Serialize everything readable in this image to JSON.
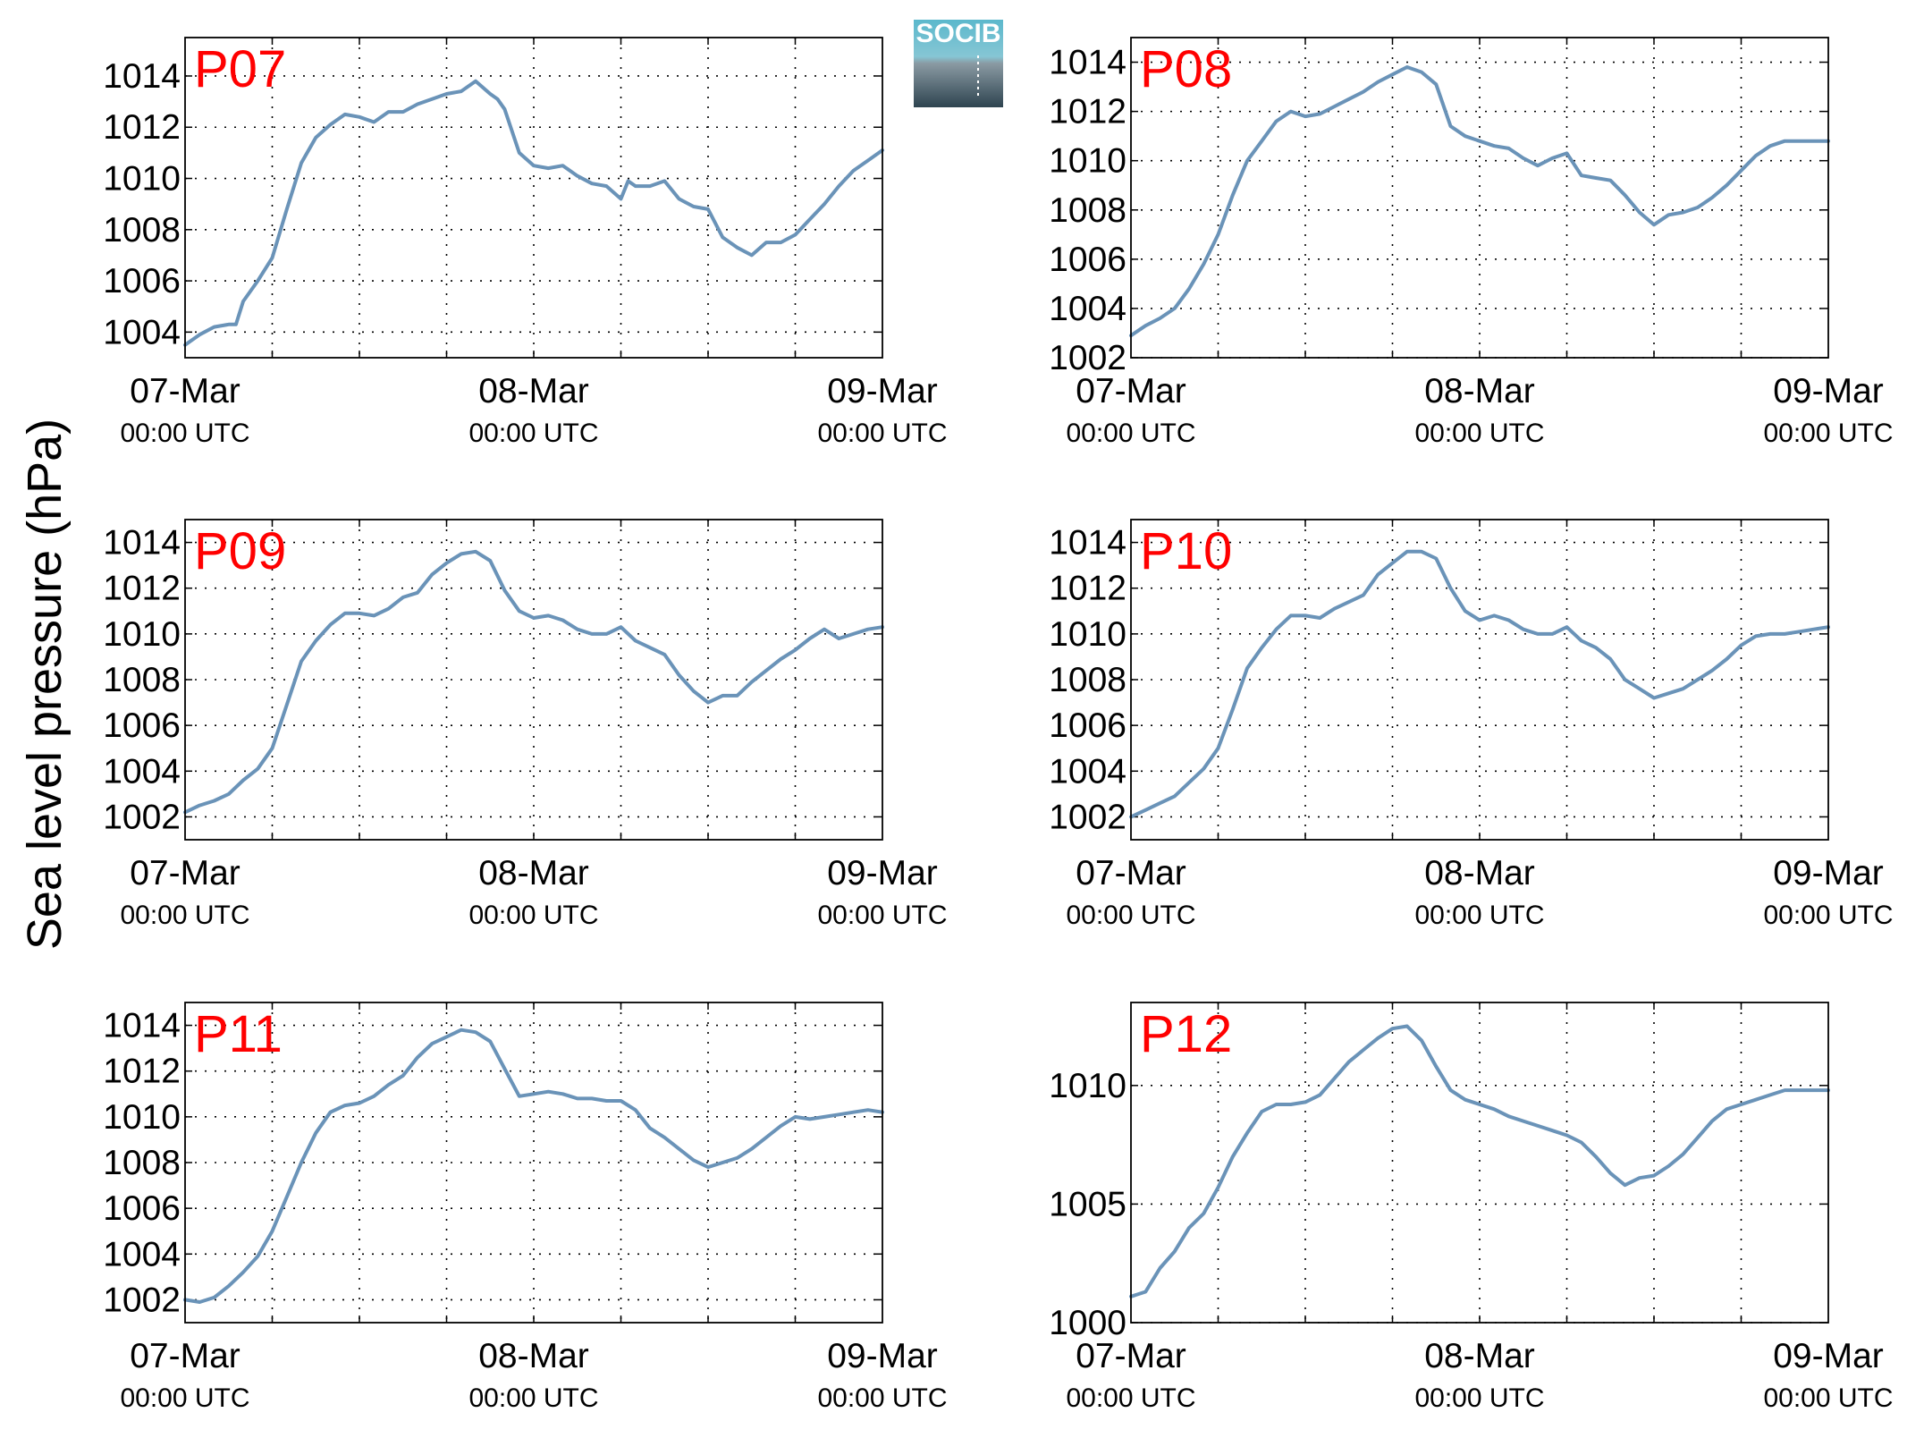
{
  "figure": {
    "ylabel": "Sea level pressure (hPa)",
    "logo_text": "SOCIB",
    "colors": {
      "line": "#6a93b8",
      "panel_label": "#ff0000",
      "logo_top": "#5bb8cc",
      "logo_bottom": "#2e4450"
    }
  },
  "chart_data": [
    {
      "type": "line",
      "name": "P07",
      "xticks": [
        "07-Mar",
        "08-Mar",
        "09-Mar"
      ],
      "xtick_sublabel": "00:00 UTC",
      "xlim_hours": [
        0,
        48
      ],
      "ylim": [
        1003,
        1015.5
      ],
      "yticks": [
        1004,
        1006,
        1008,
        1010,
        1012,
        1014
      ],
      "grid": true,
      "x_hours": [
        0,
        1,
        2,
        3,
        3.5,
        4,
        5,
        6,
        7,
        8,
        9,
        10,
        11,
        12,
        13,
        14,
        15,
        16,
        17,
        18,
        19,
        20,
        21,
        21.5,
        22,
        23,
        24,
        25,
        26,
        27,
        28,
        29,
        30,
        30.5,
        31,
        32,
        33,
        34,
        35,
        36,
        37,
        38,
        39,
        40,
        41,
        42,
        43,
        44,
        45,
        46,
        47,
        48
      ],
      "values": [
        1003.5,
        1003.9,
        1004.2,
        1004.3,
        1004.3,
        1005.2,
        1006.0,
        1006.9,
        1008.8,
        1010.6,
        1011.6,
        1012.1,
        1012.5,
        1012.4,
        1012.2,
        1012.6,
        1012.6,
        1012.9,
        1013.1,
        1013.3,
        1013.4,
        1013.8,
        1013.3,
        1013.1,
        1012.7,
        1011.0,
        1010.5,
        1010.4,
        1010.5,
        1010.1,
        1009.8,
        1009.7,
        1009.2,
        1009.9,
        1009.7,
        1009.7,
        1009.9,
        1009.2,
        1008.9,
        1008.8,
        1007.7,
        1007.3,
        1007.0,
        1007.5,
        1007.5,
        1007.8,
        1008.4,
        1009.0,
        1009.7,
        1010.3,
        1010.7,
        1011.1
      ]
    },
    {
      "type": "line",
      "name": "P08",
      "xticks": [
        "07-Mar",
        "08-Mar",
        "09-Mar"
      ],
      "xtick_sublabel": "00:00 UTC",
      "xlim_hours": [
        0,
        48
      ],
      "ylim": [
        1002,
        1015
      ],
      "yticks": [
        1002,
        1004,
        1006,
        1008,
        1010,
        1012,
        1014
      ],
      "grid": true,
      "x_hours": [
        0,
        1,
        2,
        3,
        4,
        5,
        6,
        7,
        8,
        9,
        10,
        11,
        12,
        13,
        14,
        15,
        16,
        17,
        18,
        19,
        20,
        21,
        22,
        23,
        24,
        25,
        26,
        27,
        28,
        29,
        30,
        31,
        32,
        33,
        34,
        35,
        36,
        37,
        38,
        39,
        40,
        41,
        42,
        43,
        44,
        45,
        46,
        47,
        48
      ],
      "values": [
        1002.9,
        1003.3,
        1003.6,
        1004.0,
        1004.8,
        1005.8,
        1007.0,
        1008.6,
        1010.0,
        1010.8,
        1011.6,
        1012.0,
        1011.8,
        1011.9,
        1012.2,
        1012.5,
        1012.8,
        1013.2,
        1013.5,
        1013.8,
        1013.6,
        1013.1,
        1011.4,
        1011.0,
        1010.8,
        1010.6,
        1010.5,
        1010.1,
        1009.8,
        1010.1,
        1010.3,
        1009.4,
        1009.3,
        1009.2,
        1008.6,
        1007.9,
        1007.4,
        1007.8,
        1007.9,
        1008.1,
        1008.5,
        1009.0,
        1009.6,
        1010.2,
        1010.6,
        1010.8,
        1010.8,
        1010.8,
        1010.8
      ]
    },
    {
      "type": "line",
      "name": "P09",
      "xticks": [
        "07-Mar",
        "08-Mar",
        "09-Mar"
      ],
      "xtick_sublabel": "00:00 UTC",
      "xlim_hours": [
        0,
        48
      ],
      "ylim": [
        1001,
        1015
      ],
      "yticks": [
        1002,
        1004,
        1006,
        1008,
        1010,
        1012,
        1014
      ],
      "grid": true,
      "x_hours": [
        0,
        1,
        2,
        3,
        4,
        5,
        6,
        7,
        8,
        9,
        10,
        11,
        12,
        13,
        14,
        15,
        16,
        17,
        18,
        19,
        20,
        21,
        22,
        23,
        24,
        25,
        26,
        27,
        28,
        29,
        30,
        31,
        32,
        33,
        34,
        35,
        36,
        37,
        38,
        39,
        40,
        41,
        42,
        43,
        44,
        45,
        46,
        47,
        48
      ],
      "values": [
        1002.2,
        1002.5,
        1002.7,
        1003.0,
        1003.6,
        1004.1,
        1005.0,
        1006.9,
        1008.8,
        1009.7,
        1010.4,
        1010.9,
        1010.9,
        1010.8,
        1011.1,
        1011.6,
        1011.8,
        1012.6,
        1013.1,
        1013.5,
        1013.6,
        1013.2,
        1011.9,
        1011.0,
        1010.7,
        1010.8,
        1010.6,
        1010.2,
        1010.0,
        1010.0,
        1010.3,
        1009.7,
        1009.4,
        1009.1,
        1008.2,
        1007.5,
        1007.0,
        1007.3,
        1007.3,
        1007.9,
        1008.4,
        1008.9,
        1009.3,
        1009.8,
        1010.2,
        1009.8,
        1010.0,
        1010.2,
        1010.3
      ]
    },
    {
      "type": "line",
      "name": "P10",
      "xticks": [
        "07-Mar",
        "08-Mar",
        "09-Mar"
      ],
      "xtick_sublabel": "00:00 UTC",
      "xlim_hours": [
        0,
        48
      ],
      "ylim": [
        1001,
        1015
      ],
      "yticks": [
        1002,
        1004,
        1006,
        1008,
        1010,
        1012,
        1014
      ],
      "grid": true,
      "x_hours": [
        0,
        1,
        2,
        3,
        4,
        5,
        6,
        7,
        8,
        9,
        10,
        11,
        12,
        13,
        14,
        15,
        16,
        17,
        18,
        19,
        20,
        21,
        22,
        23,
        24,
        25,
        26,
        27,
        28,
        29,
        30,
        31,
        32,
        33,
        34,
        35,
        36,
        37,
        38,
        39,
        40,
        41,
        42,
        43,
        44,
        45,
        46,
        47,
        48
      ],
      "values": [
        1002.0,
        1002.3,
        1002.6,
        1002.9,
        1003.5,
        1004.1,
        1005.0,
        1006.7,
        1008.5,
        1009.4,
        1010.2,
        1010.8,
        1010.8,
        1010.7,
        1011.1,
        1011.4,
        1011.7,
        1012.6,
        1013.1,
        1013.6,
        1013.6,
        1013.3,
        1012.0,
        1011.0,
        1010.6,
        1010.8,
        1010.6,
        1010.2,
        1010.0,
        1010.0,
        1010.3,
        1009.7,
        1009.4,
        1008.9,
        1008.0,
        1007.6,
        1007.2,
        1007.4,
        1007.6,
        1008.0,
        1008.4,
        1008.9,
        1009.5,
        1009.9,
        1010.0,
        1010.0,
        1010.1,
        1010.2,
        1010.3
      ]
    },
    {
      "type": "line",
      "name": "P11",
      "xticks": [
        "07-Mar",
        "08-Mar",
        "09-Mar"
      ],
      "xtick_sublabel": "00:00 UTC",
      "xlim_hours": [
        0,
        48
      ],
      "ylim": [
        1001,
        1015
      ],
      "yticks": [
        1002,
        1004,
        1006,
        1008,
        1010,
        1012,
        1014
      ],
      "grid": true,
      "x_hours": [
        0,
        1,
        2,
        3,
        4,
        5,
        6,
        7,
        8,
        9,
        10,
        11,
        12,
        13,
        14,
        15,
        16,
        17,
        18,
        19,
        20,
        21,
        22,
        23,
        24,
        25,
        26,
        27,
        28,
        29,
        30,
        31,
        32,
        33,
        34,
        35,
        36,
        37,
        38,
        39,
        40,
        41,
        42,
        43,
        44,
        45,
        46,
        47,
        48
      ],
      "values": [
        1002.0,
        1001.9,
        1002.1,
        1002.6,
        1003.2,
        1003.9,
        1005.0,
        1006.5,
        1008.0,
        1009.3,
        1010.2,
        1010.5,
        1010.6,
        1010.9,
        1011.4,
        1011.8,
        1012.6,
        1013.2,
        1013.5,
        1013.8,
        1013.7,
        1013.3,
        1012.1,
        1010.9,
        1011.0,
        1011.1,
        1011.0,
        1010.8,
        1010.8,
        1010.7,
        1010.7,
        1010.3,
        1009.5,
        1009.1,
        1008.6,
        1008.1,
        1007.8,
        1008.0,
        1008.2,
        1008.6,
        1009.1,
        1009.6,
        1010.0,
        1009.9,
        1010.0,
        1010.1,
        1010.2,
        1010.3,
        1010.2
      ]
    },
    {
      "type": "line",
      "name": "P12",
      "xticks": [
        "07-Mar",
        "08-Mar",
        "09-Mar"
      ],
      "xtick_sublabel": "00:00 UTC",
      "xlim_hours": [
        0,
        48
      ],
      "ylim": [
        1000,
        1013.5
      ],
      "yticks": [
        1000,
        1005,
        1010
      ],
      "grid": true,
      "x_hours": [
        0,
        1,
        2,
        3,
        4,
        5,
        6,
        7,
        8,
        9,
        10,
        11,
        12,
        13,
        14,
        15,
        16,
        17,
        18,
        19,
        20,
        21,
        22,
        23,
        24,
        25,
        26,
        27,
        28,
        29,
        30,
        31,
        32,
        33,
        34,
        35,
        36,
        37,
        38,
        39,
        40,
        41,
        42,
        43,
        44,
        45,
        46,
        47,
        48
      ],
      "values": [
        1001.1,
        1001.3,
        1002.3,
        1003.0,
        1004.0,
        1004.6,
        1005.7,
        1007.0,
        1008.0,
        1008.9,
        1009.2,
        1009.2,
        1009.3,
        1009.6,
        1010.3,
        1011.0,
        1011.5,
        1012.0,
        1012.4,
        1012.5,
        1011.9,
        1010.8,
        1009.8,
        1009.4,
        1009.2,
        1009.0,
        1008.7,
        1008.5,
        1008.3,
        1008.1,
        1007.9,
        1007.6,
        1007.0,
        1006.3,
        1005.8,
        1006.1,
        1006.2,
        1006.6,
        1007.1,
        1007.8,
        1008.5,
        1009.0,
        1009.2,
        1009.4,
        1009.6,
        1009.8,
        1009.8,
        1009.8,
        1009.8
      ]
    }
  ]
}
